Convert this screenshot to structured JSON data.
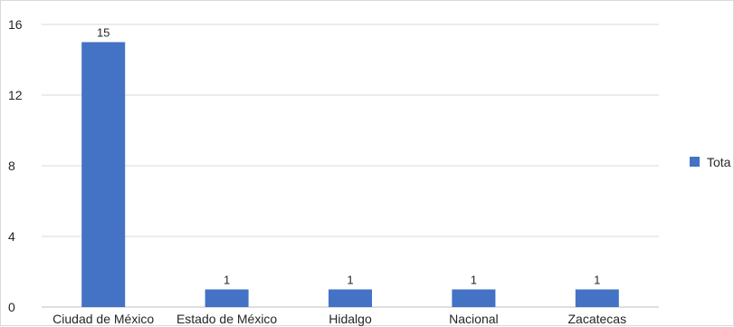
{
  "chart_data": {
    "type": "bar",
    "categories": [
      "Ciudad de México",
      "Estado de México",
      "Hidalgo",
      "Nacional",
      "Zacatecas"
    ],
    "series": [
      {
        "name": "Total",
        "values": [
          15,
          1,
          1,
          1,
          1
        ],
        "color": "#4472c4"
      }
    ],
    "title": "",
    "xlabel": "",
    "ylabel": "",
    "ylim": [
      0,
      16
    ],
    "yticks": [
      0,
      4,
      8,
      12,
      16
    ],
    "grid": true,
    "data_labels": true,
    "legend_position": "right"
  },
  "legend": {
    "label": "Tota"
  },
  "colors": {
    "bar": "#4472c4",
    "grid": "#d9d9d9",
    "axis": "#bfbfbf",
    "text": "#262626"
  }
}
